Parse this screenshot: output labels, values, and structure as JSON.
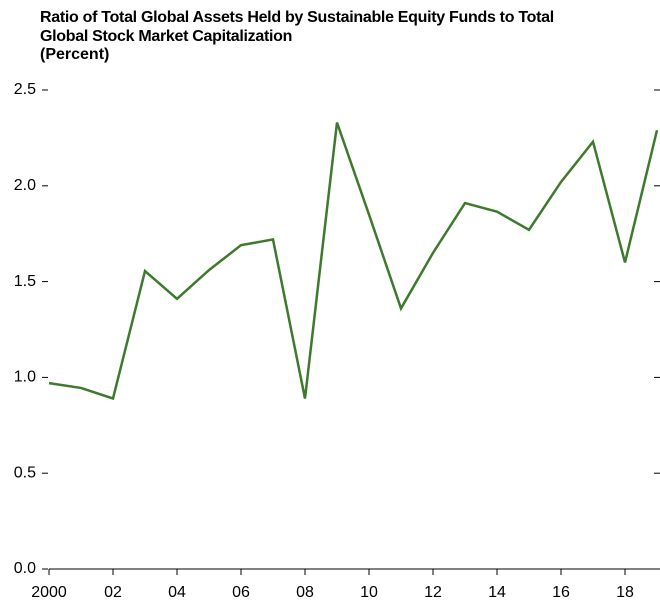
{
  "chart_data": {
    "type": "line",
    "title": "Ratio of Total Global Assets Held by Sustainable Equity Funds to Total Global Stock Market Capitalization",
    "subtitle": "(Percent)",
    "x": [
      2000,
      2001,
      2002,
      2003,
      2004,
      2005,
      2006,
      2007,
      2008,
      2009,
      2010,
      2011,
      2012,
      2013,
      2014,
      2015,
      2016,
      2017,
      2018,
      2019
    ],
    "series": [
      {
        "color": "#3d7a2c",
        "values": [
          0.97,
          0.945,
          0.89,
          1.555,
          1.41,
          1.56,
          1.69,
          1.72,
          0.89,
          2.33,
          1.85,
          1.36,
          1.65,
          1.91,
          1.865,
          1.77,
          2.02,
          2.23,
          1.6,
          2.29
        ]
      }
    ],
    "xlim": [
      2000,
      2019
    ],
    "xticks": [
      2000,
      {
        "value": 2002,
        "label": "02"
      },
      {
        "value": 2004,
        "label": "04"
      },
      {
        "value": 2006,
        "label": "06"
      },
      {
        "value": 2008,
        "label": "08"
      },
      {
        "value": 2010,
        "label": "10"
      },
      {
        "value": 2012,
        "label": "12"
      },
      {
        "value": 2014,
        "label": "14"
      },
      {
        "value": 2016,
        "label": "16"
      },
      {
        "value": 2018,
        "label": "18"
      }
    ],
    "ylim": [
      0,
      2.5
    ],
    "yticks": [
      {
        "value": 0,
        "label": "0.0"
      },
      0.5,
      {
        "value": 1,
        "label": "1.0"
      },
      1.5,
      {
        "value": 2,
        "label": "2.0"
      },
      2.5
    ]
  }
}
